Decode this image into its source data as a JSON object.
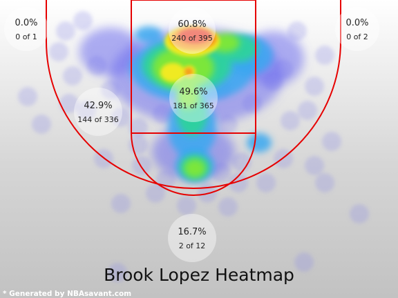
{
  "chart_data": {
    "type": "heatmap",
    "title": "Brook Lopez Heatmap",
    "credit": "* Generated by NBAsavant.com",
    "zones": [
      {
        "name": "left-corner-three",
        "pct": "0.0%",
        "made": 0,
        "att": 1,
        "label": "0 of 1"
      },
      {
        "name": "right-corner-three",
        "pct": "0.0%",
        "made": 0,
        "att": 2,
        "label": "0 of 2"
      },
      {
        "name": "restricted-area",
        "pct": "60.8%",
        "made": 240,
        "att": 395,
        "label": "240 of 395"
      },
      {
        "name": "paint",
        "pct": "49.6%",
        "made": 181,
        "att": 365,
        "label": "181 of 365"
      },
      {
        "name": "mid-range",
        "pct": "42.9%",
        "made": 144,
        "att": 336,
        "label": "144 of 336"
      },
      {
        "name": "above-break-three",
        "pct": "16.7%",
        "made": 2,
        "att": 12,
        "label": "2 of 12"
      }
    ],
    "colors": {
      "court_lines": "#e60000",
      "background_top": "#ffffff",
      "background_bottom": "#c2c2c2"
    }
  }
}
